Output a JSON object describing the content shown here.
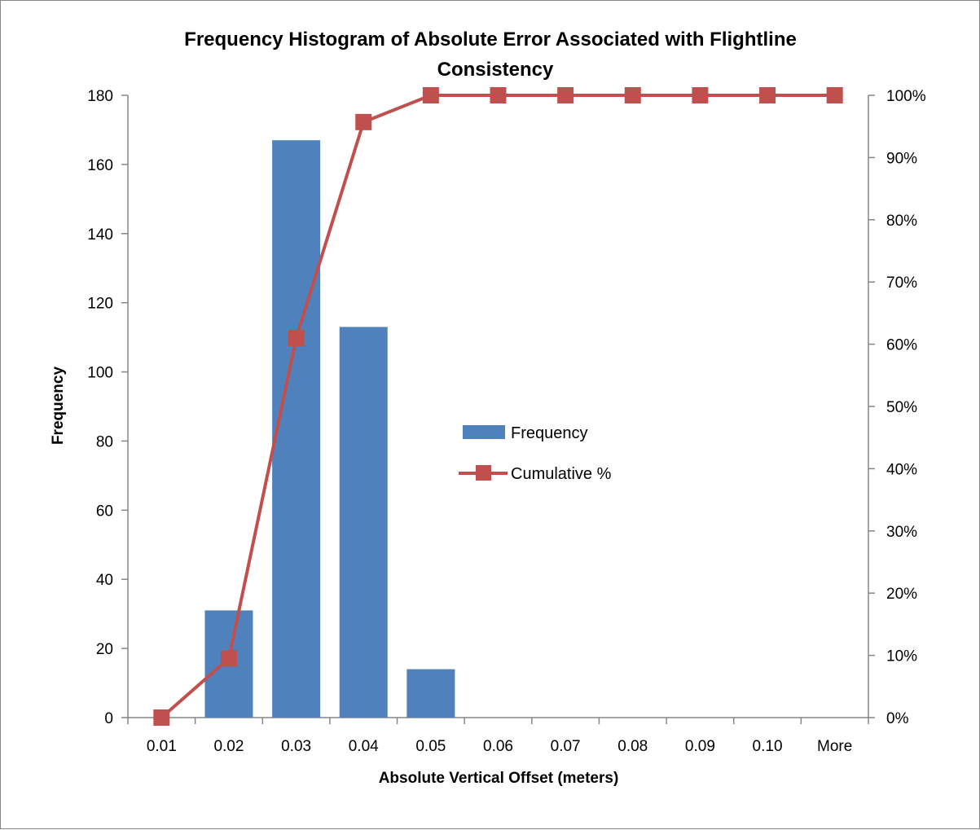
{
  "chart_data": {
    "type": "bar",
    "title_line1": "Frequency Histogram of Absolute Error Associated with Flightline",
    "title_line2": "Consistency",
    "xlabel": "Absolute Vertical Offset (meters)",
    "ylabel": "Frequency",
    "categories": [
      "0.01",
      "0.02",
      "0.03",
      "0.04",
      "0.05",
      "0.06",
      "0.07",
      "0.08",
      "0.09",
      "0.10",
      "More"
    ],
    "series": [
      {
        "name": "Frequency",
        "kind": "bar",
        "axis": "left",
        "color": "#4F81BD",
        "values": [
          0,
          31,
          167,
          113,
          14,
          0,
          0,
          0,
          0,
          0,
          0
        ]
      },
      {
        "name": "Cumulative %",
        "kind": "line",
        "axis": "right",
        "color": "#C0504D",
        "values": [
          0,
          9.5,
          61,
          95.7,
          100,
          100,
          100,
          100,
          100,
          100,
          100
        ]
      }
    ],
    "ylim": [
      0,
      180
    ],
    "yticks": [
      0,
      20,
      40,
      60,
      80,
      100,
      120,
      140,
      160,
      180
    ],
    "y2lim": [
      0,
      100
    ],
    "y2ticks": [
      "0%",
      "10%",
      "20%",
      "30%",
      "40%",
      "50%",
      "60%",
      "70%",
      "80%",
      "90%",
      "100%"
    ],
    "legend_position": "center-right",
    "grid": false
  }
}
